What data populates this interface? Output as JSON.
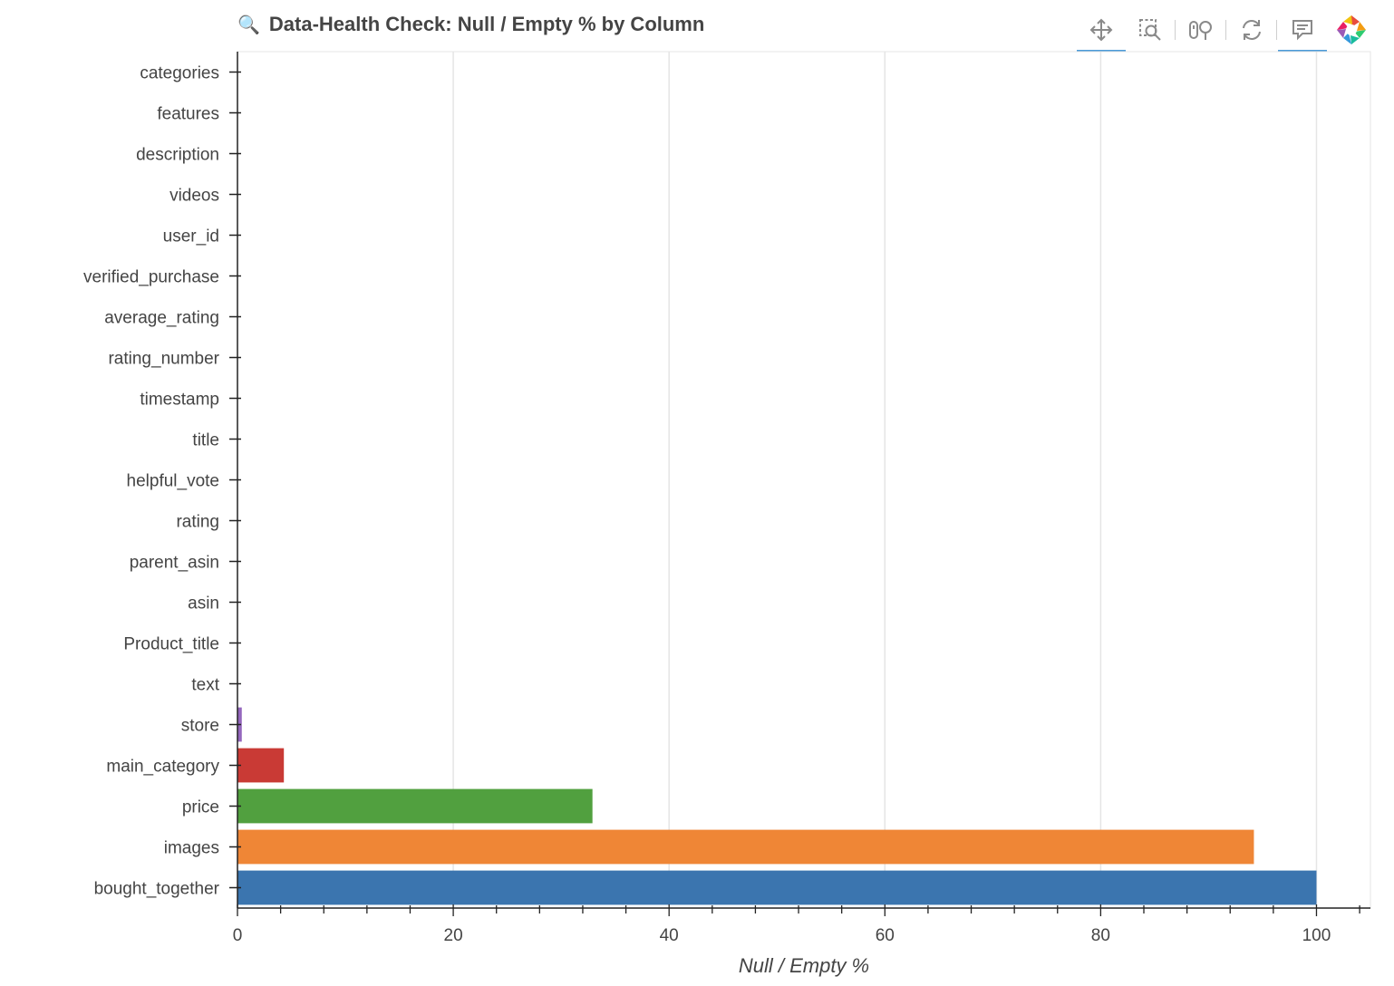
{
  "title": "Data-Health Check: Null / Empty % by Column",
  "toolbar": {
    "tools": [
      {
        "name": "pan-tool",
        "icon": "pan-icon",
        "active": true
      },
      {
        "name": "box-zoom-tool",
        "icon": "box-zoom-icon",
        "active": false
      },
      {
        "name": "wheel-zoom-tool",
        "icon": "wheel-zoom-icon",
        "active": false
      },
      {
        "name": "reset-tool",
        "icon": "reset-icon",
        "active": false
      },
      {
        "name": "hover-tool",
        "icon": "hover-tooltip-icon",
        "active": true
      },
      {
        "name": "bokeh-logo",
        "icon": "bokeh-logo-icon",
        "active": false
      }
    ]
  },
  "chart_data": {
    "type": "bar",
    "orientation": "horizontal",
    "title": "Data-Health Check: Null / Empty % by Column",
    "xlabel": "Null / Empty %",
    "ylabel": "",
    "xlim": [
      0,
      105
    ],
    "xticks": [
      0,
      20,
      40,
      60,
      80,
      100
    ],
    "grid": true,
    "categories": [
      "categories",
      "features",
      "description",
      "videos",
      "user_id",
      "verified_purchase",
      "average_rating",
      "rating_number",
      "timestamp",
      "title",
      "helpful_vote",
      "rating",
      "parent_asin",
      "asin",
      "Product_title",
      "text",
      "store",
      "main_category",
      "price",
      "images",
      "bought_together"
    ],
    "values": [
      0,
      0,
      0,
      0,
      0,
      0,
      0,
      0,
      0,
      0,
      0,
      0,
      0,
      0,
      0,
      0,
      0.4,
      4.3,
      32.9,
      94.2,
      100
    ],
    "colors": [
      "#1f77b4",
      "#1f77b4",
      "#1f77b4",
      "#1f77b4",
      "#1f77b4",
      "#1f77b4",
      "#1f77b4",
      "#1f77b4",
      "#1f77b4",
      "#1f77b4",
      "#1f77b4",
      "#1f77b4",
      "#1f77b4",
      "#1f77b4",
      "#1f77b4",
      "#1f77b4",
      "#9467bd",
      "#c93a35",
      "#51a03f",
      "#ef8636",
      "#3b75af"
    ]
  }
}
